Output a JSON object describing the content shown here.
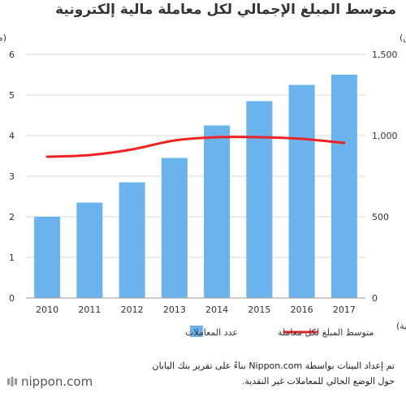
{
  "chart_data": {
    "type": "bar+line",
    "title": "متوسط المبلغ الإجمالي لكل معاملة مالية إلكترونية",
    "categories": [
      "2010",
      "2011",
      "2012",
      "2013",
      "2014",
      "2015",
      "2016",
      "2017"
    ],
    "series": [
      {
        "name": "عدد المعاملات",
        "type": "bar",
        "axis": "left",
        "color": "#6bb3ec",
        "values": [
          2.0,
          2.35,
          2.85,
          3.45,
          4.25,
          4.85,
          5.25,
          5.5
        ]
      },
      {
        "name": "متوسط المبلغ لكل معاملة",
        "type": "line",
        "axis": "right",
        "color": "#ee2222",
        "values": [
          870,
          880,
          915,
          970,
          990,
          990,
          980,
          955
        ]
      }
    ],
    "left_axis": {
      "unit": "(مليار)",
      "ylim": [
        0,
        6
      ],
      "ticks": [
        "0",
        "1",
        "2",
        "3",
        "4",
        "5",
        "6"
      ]
    },
    "right_axis": {
      "unit": "(ين)",
      "ylim": [
        0,
        1500
      ],
      "ticks": [
        "0",
        "500",
        "1,000",
        "1,500"
      ]
    },
    "x_axis_note": "(سنة مالية)",
    "grid": true,
    "legend_position": "bottom"
  },
  "source_lines": [
    "تم إعداد البينات بواسطة Nippon.com بناءً على تقرير بنك اليابان",
    "حول الوضع الحالي للمعاملات غير النقدية."
  ],
  "logo_text": "nippon.com",
  "grid_color": "#d6d6d6",
  "axis_text_color": "#333333"
}
